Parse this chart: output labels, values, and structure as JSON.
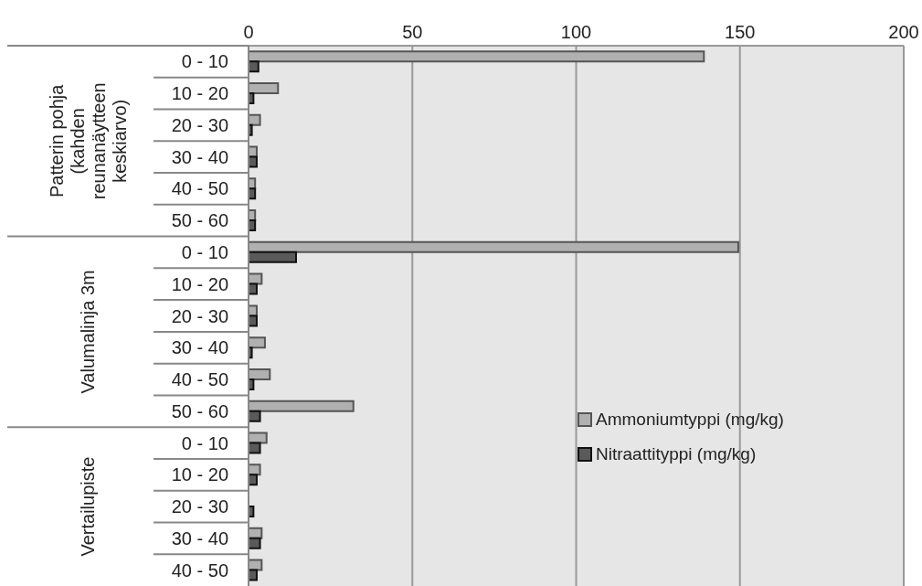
{
  "chart_data": {
    "type": "bar",
    "orientation": "horizontal",
    "categories": [
      "0 - 10",
      "10 - 20",
      "20 - 30",
      "30 - 40",
      "40 - 50",
      "50 - 60",
      "0 - 10",
      "10 - 20",
      "20 - 30",
      "30 - 40",
      "40 - 50",
      "50 - 60",
      "0 - 10",
      "10 - 20",
      "20 - 30",
      "30 - 40",
      "40 - 50"
    ],
    "series": [
      {
        "name": "Ammoniumtyppi (mg/kg)",
        "color": "#b0b0b0",
        "values": [
          139,
          9,
          3.5,
          2.5,
          2,
          2,
          149.5,
          4,
          2.5,
          5,
          6.5,
          32,
          5.5,
          3.5,
          0,
          4,
          4
        ]
      },
      {
        "name": "Nitraattityppi (mg/kg)",
        "color": "#5a5a5a",
        "values": [
          3,
          1.5,
          1,
          2.5,
          2,
          2,
          14.5,
          2.5,
          2.5,
          1,
          1.5,
          3.5,
          3.5,
          2.5,
          1.5,
          3.5,
          2.5
        ]
      }
    ],
    "xlim": [
      0,
      200
    ],
    "xticks": [
      0,
      50,
      100,
      150,
      200
    ],
    "grid": "x",
    "legend": "bottom right",
    "annotations": [
      "Patterin pohja (kahden reunanäytteen keskiarvo)",
      "Valumalinja 3m",
      "Vertailupiste"
    ]
  }
}
